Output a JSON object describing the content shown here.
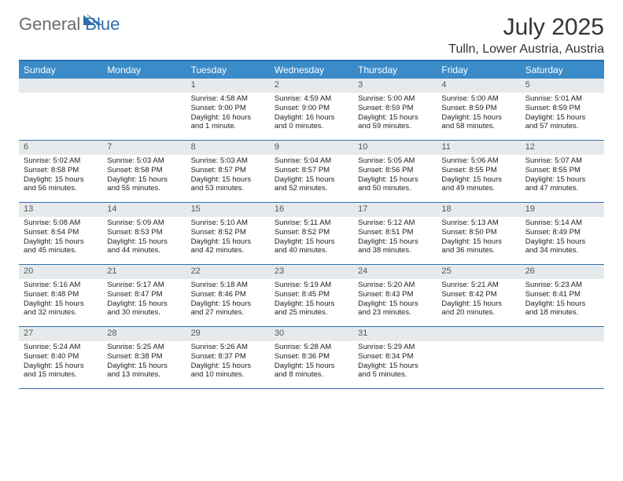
{
  "brand": {
    "general": "General",
    "blue": "Blue"
  },
  "title": "July 2025",
  "location": "Tulln, Lower Austria, Austria",
  "colors": {
    "header_bg": "#3b8bc8",
    "border": "#2f6fb0",
    "daynum_bg": "#e7eaec",
    "text": "#333333"
  },
  "day_headers": [
    "Sunday",
    "Monday",
    "Tuesday",
    "Wednesday",
    "Thursday",
    "Friday",
    "Saturday"
  ],
  "weeks": [
    [
      null,
      null,
      {
        "n": "1",
        "sr": "4:58 AM",
        "ss": "9:00 PM",
        "dl": "16 hours and 1 minute."
      },
      {
        "n": "2",
        "sr": "4:59 AM",
        "ss": "9:00 PM",
        "dl": "16 hours and 0 minutes."
      },
      {
        "n": "3",
        "sr": "5:00 AM",
        "ss": "8:59 PM",
        "dl": "15 hours and 59 minutes."
      },
      {
        "n": "4",
        "sr": "5:00 AM",
        "ss": "8:59 PM",
        "dl": "15 hours and 58 minutes."
      },
      {
        "n": "5",
        "sr": "5:01 AM",
        "ss": "8:59 PM",
        "dl": "15 hours and 57 minutes."
      }
    ],
    [
      {
        "n": "6",
        "sr": "5:02 AM",
        "ss": "8:58 PM",
        "dl": "15 hours and 56 minutes."
      },
      {
        "n": "7",
        "sr": "5:03 AM",
        "ss": "8:58 PM",
        "dl": "15 hours and 55 minutes."
      },
      {
        "n": "8",
        "sr": "5:03 AM",
        "ss": "8:57 PM",
        "dl": "15 hours and 53 minutes."
      },
      {
        "n": "9",
        "sr": "5:04 AM",
        "ss": "8:57 PM",
        "dl": "15 hours and 52 minutes."
      },
      {
        "n": "10",
        "sr": "5:05 AM",
        "ss": "8:56 PM",
        "dl": "15 hours and 50 minutes."
      },
      {
        "n": "11",
        "sr": "5:06 AM",
        "ss": "8:55 PM",
        "dl": "15 hours and 49 minutes."
      },
      {
        "n": "12",
        "sr": "5:07 AM",
        "ss": "8:55 PM",
        "dl": "15 hours and 47 minutes."
      }
    ],
    [
      {
        "n": "13",
        "sr": "5:08 AM",
        "ss": "8:54 PM",
        "dl": "15 hours and 45 minutes."
      },
      {
        "n": "14",
        "sr": "5:09 AM",
        "ss": "8:53 PM",
        "dl": "15 hours and 44 minutes."
      },
      {
        "n": "15",
        "sr": "5:10 AM",
        "ss": "8:52 PM",
        "dl": "15 hours and 42 minutes."
      },
      {
        "n": "16",
        "sr": "5:11 AM",
        "ss": "8:52 PM",
        "dl": "15 hours and 40 minutes."
      },
      {
        "n": "17",
        "sr": "5:12 AM",
        "ss": "8:51 PM",
        "dl": "15 hours and 38 minutes."
      },
      {
        "n": "18",
        "sr": "5:13 AM",
        "ss": "8:50 PM",
        "dl": "15 hours and 36 minutes."
      },
      {
        "n": "19",
        "sr": "5:14 AM",
        "ss": "8:49 PM",
        "dl": "15 hours and 34 minutes."
      }
    ],
    [
      {
        "n": "20",
        "sr": "5:16 AM",
        "ss": "8:48 PM",
        "dl": "15 hours and 32 minutes."
      },
      {
        "n": "21",
        "sr": "5:17 AM",
        "ss": "8:47 PM",
        "dl": "15 hours and 30 minutes."
      },
      {
        "n": "22",
        "sr": "5:18 AM",
        "ss": "8:46 PM",
        "dl": "15 hours and 27 minutes."
      },
      {
        "n": "23",
        "sr": "5:19 AM",
        "ss": "8:45 PM",
        "dl": "15 hours and 25 minutes."
      },
      {
        "n": "24",
        "sr": "5:20 AM",
        "ss": "8:43 PM",
        "dl": "15 hours and 23 minutes."
      },
      {
        "n": "25",
        "sr": "5:21 AM",
        "ss": "8:42 PM",
        "dl": "15 hours and 20 minutes."
      },
      {
        "n": "26",
        "sr": "5:23 AM",
        "ss": "8:41 PM",
        "dl": "15 hours and 18 minutes."
      }
    ],
    [
      {
        "n": "27",
        "sr": "5:24 AM",
        "ss": "8:40 PM",
        "dl": "15 hours and 15 minutes."
      },
      {
        "n": "28",
        "sr": "5:25 AM",
        "ss": "8:38 PM",
        "dl": "15 hours and 13 minutes."
      },
      {
        "n": "29",
        "sr": "5:26 AM",
        "ss": "8:37 PM",
        "dl": "15 hours and 10 minutes."
      },
      {
        "n": "30",
        "sr": "5:28 AM",
        "ss": "8:36 PM",
        "dl": "15 hours and 8 minutes."
      },
      {
        "n": "31",
        "sr": "5:29 AM",
        "ss": "8:34 PM",
        "dl": "15 hours and 5 minutes."
      },
      null,
      null
    ]
  ],
  "labels": {
    "sunrise": "Sunrise: ",
    "sunset": "Sunset: ",
    "daylight": "Daylight: "
  }
}
